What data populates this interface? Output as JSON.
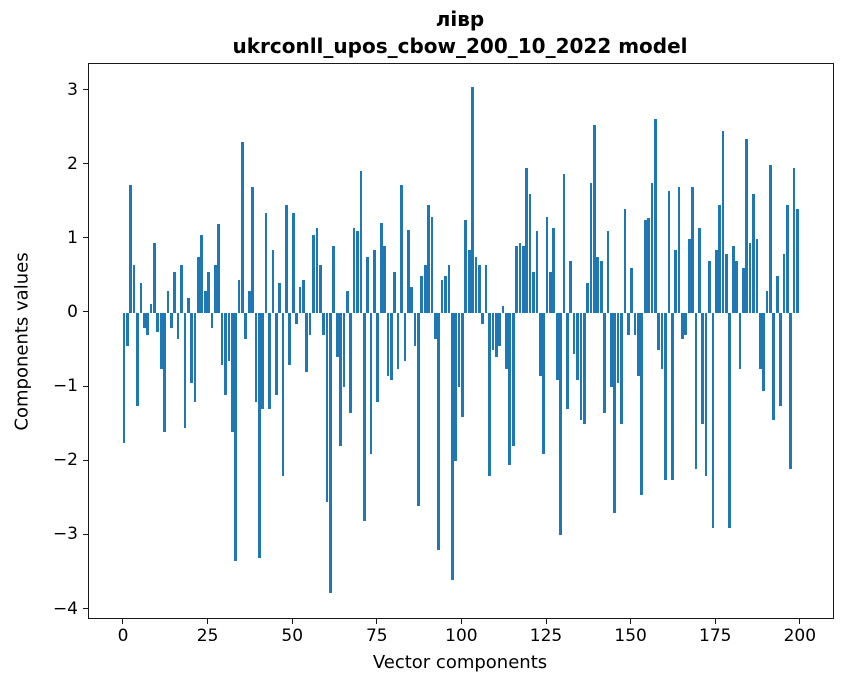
{
  "figure": {
    "title_line1": "лівр",
    "title_line2": "ukrconll_upos_cbow_200_10_2022 model",
    "xlabel": "Vector components",
    "ylabel": "Components values"
  },
  "chart_data": {
    "type": "bar",
    "title": "лівр\nukrconll_upos_cbow_200_10_2022 model",
    "xlabel": "Vector components",
    "ylabel": "Components values",
    "bar_color": "#1f77b4",
    "axis_color": "#1a1a1a",
    "grid": false,
    "legend": "none",
    "x_start": 0,
    "x_ticks": [
      0,
      25,
      50,
      75,
      100,
      125,
      150,
      175,
      200
    ],
    "y_ticks": [
      3,
      2,
      1,
      0,
      -1,
      -2,
      -3,
      -4
    ],
    "xlim": [
      -10.34,
      209.5
    ],
    "ylim": [
      -4.114,
      3.358
    ],
    "values": [
      -1.75,
      -0.45,
      1.72,
      0.65,
      -1.25,
      0.4,
      -0.2,
      -0.3,
      0.12,
      0.95,
      -0.25,
      -0.75,
      -1.6,
      0.3,
      -0.2,
      0.55,
      -0.35,
      0.65,
      -1.55,
      0.2,
      -0.95,
      -1.2,
      0.75,
      1.05,
      0.3,
      0.55,
      -0.2,
      0.65,
      1.2,
      -0.7,
      -1.1,
      -0.65,
      -1.6,
      -3.35,
      0.45,
      2.3,
      -0.35,
      0.3,
      1.7,
      -1.2,
      -3.3,
      -1.3,
      1.35,
      -1.3,
      0.85,
      -1.1,
      0.4,
      -2.2,
      1.45,
      -0.7,
      1.35,
      -0.15,
      0.35,
      0.45,
      -0.8,
      -0.3,
      1.05,
      1.15,
      0.65,
      -0.3,
      -2.55,
      -3.78,
      0.9,
      -0.6,
      -1.8,
      -1.0,
      0.3,
      -1.35,
      1.15,
      1.1,
      1.92,
      -2.8,
      0.75,
      -1.9,
      0.85,
      -1.2,
      1.22,
      0.9,
      -0.85,
      -0.9,
      0.55,
      -0.75,
      1.73,
      -0.65,
      1.12,
      0.35,
      -0.45,
      -2.6,
      0.5,
      0.65,
      1.45,
      1.3,
      -0.35,
      -3.2,
      0.45,
      0.5,
      0.65,
      -3.6,
      -2.0,
      -1.0,
      -1.4,
      1.25,
      0.85,
      3.05,
      0.75,
      0.65,
      -0.15,
      0.65,
      -2.2,
      -0.5,
      -0.6,
      -0.45,
      0.1,
      -0.75,
      -2.05,
      -1.8,
      0.9,
      0.95,
      0.9,
      1.95,
      1.6,
      0.55,
      1.1,
      -0.85,
      -1.9,
      1.3,
      0.55,
      1.15,
      -0.9,
      -3.0,
      1.87,
      -1.3,
      0.7,
      -0.55,
      -0.9,
      -1.45,
      -1.5,
      0.4,
      1.75,
      2.53,
      0.75,
      0.7,
      -1.35,
      1.1,
      -1.0,
      -2.7,
      -0.95,
      -1.5,
      1.4,
      -0.3,
      0.6,
      -0.3,
      -0.85,
      -2.45,
      1.25,
      1.28,
      1.75,
      2.62,
      -0.5,
      -0.75,
      -2.25,
      1.65,
      -2.25,
      0.85,
      1.7,
      -0.35,
      -0.3,
      1.0,
      1.7,
      -2.1,
      1.15,
      -1.5,
      -2.2,
      0.7,
      -2.9,
      0.85,
      1.45,
      2.45,
      0.8,
      -2.9,
      0.9,
      0.7,
      -0.75,
      0.6,
      2.35,
      0.95,
      1.6,
      1.0,
      -0.75,
      -1.05,
      0.3,
      2.0,
      -1.45,
      0.5,
      -1.25,
      0.8,
      1.45,
      -2.1,
      1.95,
      1.4
    ]
  }
}
